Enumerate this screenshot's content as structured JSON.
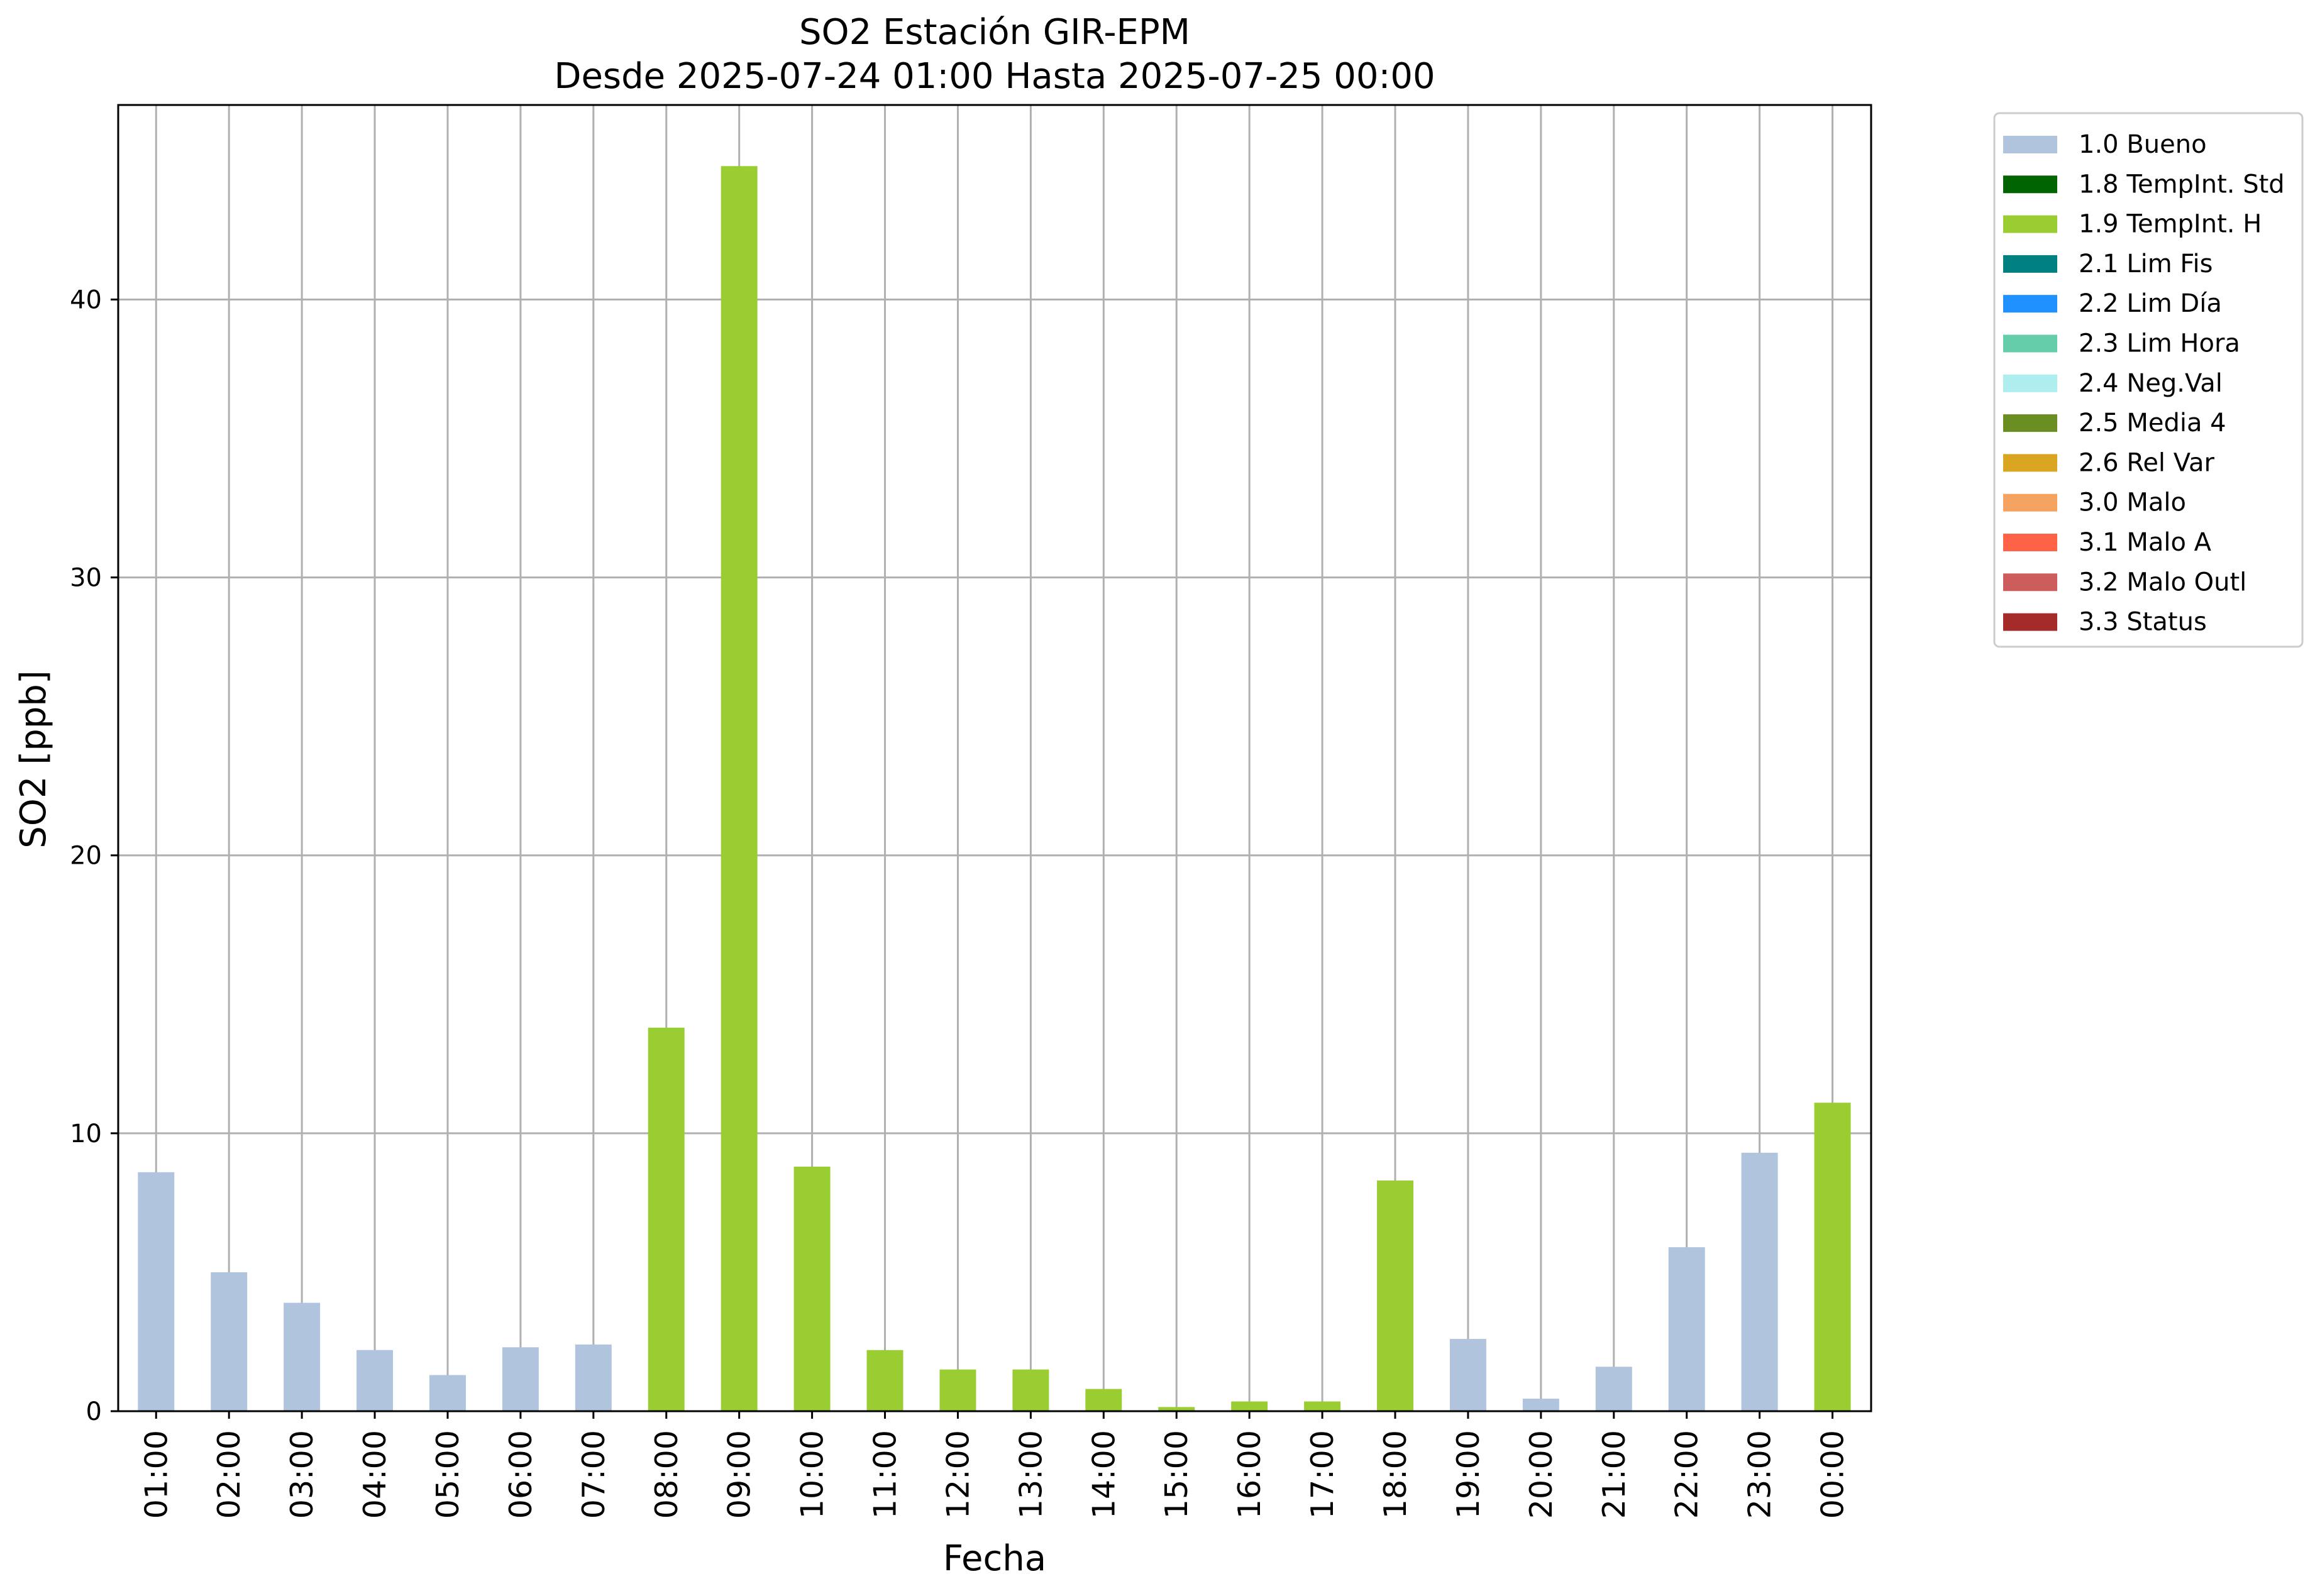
{
  "chart_data": {
    "type": "bar",
    "title": "SO2 Estación GIR-EPM",
    "subtitle": "Desde 2025-07-24 01:00 Hasta 2025-07-25 00:00",
    "xlabel": "Fecha",
    "ylabel": "SO2 [ppb]",
    "ylim": [
      0,
      47
    ],
    "yticks": [
      0,
      10,
      20,
      30,
      40
    ],
    "grid": true,
    "legend_position": "outside-top-right",
    "categories": [
      "01:00",
      "02:00",
      "03:00",
      "04:00",
      "05:00",
      "06:00",
      "07:00",
      "08:00",
      "09:00",
      "10:00",
      "11:00",
      "12:00",
      "13:00",
      "14:00",
      "15:00",
      "16:00",
      "17:00",
      "18:00",
      "19:00",
      "20:00",
      "21:00",
      "22:00",
      "23:00",
      "00:00"
    ],
    "values": [
      8.6,
      5.0,
      3.9,
      2.2,
      1.3,
      2.3,
      2.4,
      13.8,
      44.8,
      8.8,
      2.2,
      1.5,
      1.5,
      0.8,
      0.15,
      0.35,
      0.35,
      8.3,
      2.6,
      0.45,
      1.6,
      5.9,
      9.3,
      11.1
    ],
    "flags": [
      "1.0 Bueno",
      "1.0 Bueno",
      "1.0 Bueno",
      "1.0 Bueno",
      "1.0 Bueno",
      "1.0 Bueno",
      "1.0 Bueno",
      "1.9 TempInt. H",
      "1.9 TempInt. H",
      "1.9 TempInt. H",
      "1.9 TempInt. H",
      "1.9 TempInt. H",
      "1.9 TempInt. H",
      "1.9 TempInt. H",
      "1.9 TempInt. H",
      "1.9 TempInt. H",
      "1.9 TempInt. H",
      "1.9 TempInt. H",
      "1.0 Bueno",
      "1.0 Bueno",
      "1.0 Bueno",
      "1.0 Bueno",
      "1.0 Bueno",
      "1.9 TempInt. H"
    ],
    "legend": [
      {
        "label": "1.0 Bueno",
        "color": "#b0c4de"
      },
      {
        "label": "1.8 TempInt. Std",
        "color": "#006400"
      },
      {
        "label": "1.9 TempInt. H",
        "color": "#9acd32"
      },
      {
        "label": "2.1 Lim Fis",
        "color": "#008080"
      },
      {
        "label": "2.2 Lim Día",
        "color": "#1e90ff"
      },
      {
        "label": "2.3 Lim Hora",
        "color": "#66cdaa"
      },
      {
        "label": "2.4 Neg.Val",
        "color": "#afeeee"
      },
      {
        "label": "2.5 Media 4",
        "color": "#6b8e23"
      },
      {
        "label": "2.6 Rel Var",
        "color": "#daa520"
      },
      {
        "label": "3.0 Malo",
        "color": "#f4a460"
      },
      {
        "label": "3.1 Malo A",
        "color": "#ff6347"
      },
      {
        "label": "3.2 Malo Outl",
        "color": "#cd5c5c"
      },
      {
        "label": "3.3 Status",
        "color": "#a52a2a"
      }
    ],
    "grid_color": "#b0b0b0"
  }
}
